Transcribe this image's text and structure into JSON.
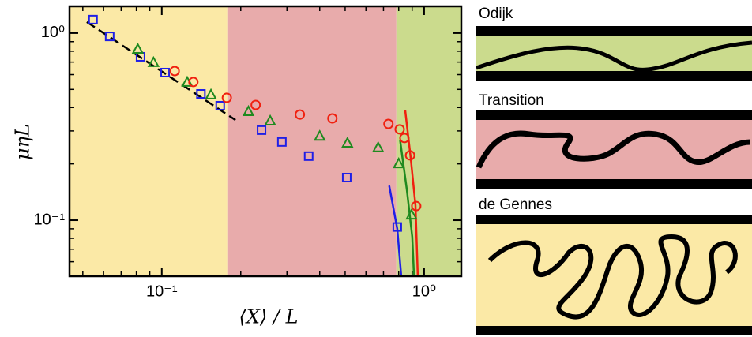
{
  "chart_data": {
    "type": "scatter",
    "xlabel": "⟨X⟩ / L",
    "ylabel": "μηL",
    "xscale": "log",
    "yscale": "log",
    "xlim": [
      0.0445,
      1.386
    ],
    "ylim": [
      0.0502,
      1.39
    ],
    "xticks": [
      {
        "value": 0.1,
        "label": "10⁻¹"
      },
      {
        "value": 1,
        "label": "10⁰"
      }
    ],
    "yticks": [
      {
        "value": 0.1,
        "label": "10⁻¹"
      },
      {
        "value": 1,
        "label": "10⁰"
      }
    ],
    "regions": [
      {
        "from": 0.0445,
        "to": 0.179,
        "color": "#fbe9a6"
      },
      {
        "from": 0.179,
        "to": 0.784,
        "color": "#e8abab"
      },
      {
        "from": 0.784,
        "to": 1.386,
        "color": "#cbdb8d"
      }
    ],
    "series": [
      {
        "marker": "square",
        "color": "#1f1fe6",
        "x": [
          0.0547,
          0.0633,
          0.083,
          0.103,
          0.141,
          0.167,
          0.24,
          0.287,
          0.363,
          0.507,
          0.79
        ],
        "y": [
          1.18,
          0.96,
          0.747,
          0.615,
          0.473,
          0.409,
          0.303,
          0.262,
          0.22,
          0.169,
          0.092
        ]
      },
      {
        "marker": "triangle",
        "color": "#1f8a1f",
        "x": [
          0.081,
          0.093,
          0.125,
          0.154,
          0.214,
          0.259,
          0.4,
          0.51,
          0.668,
          0.8,
          0.895
        ],
        "y": [
          0.823,
          0.698,
          0.548,
          0.469,
          0.382,
          0.34,
          0.282,
          0.259,
          0.245,
          0.201,
          0.107
        ]
      },
      {
        "marker": "circle",
        "color": "#f0200f",
        "x": [
          0.112,
          0.132,
          0.177,
          0.228,
          0.336,
          0.447,
          0.731,
          0.807,
          0.841,
          0.884,
          0.933
        ],
        "y": [
          0.627,
          0.548,
          0.451,
          0.413,
          0.367,
          0.35,
          0.327,
          0.306,
          0.275,
          0.222,
          0.119
        ]
      }
    ],
    "lines": [
      {
        "color": "#000000",
        "dash": true,
        "x": [
          0.0518,
          0.191
        ],
        "y": [
          1.146,
          0.343
        ]
      },
      {
        "color": "#1f1fe6",
        "dash": false,
        "x": [
          0.736,
          0.79,
          0.818
        ],
        "y": [
          0.153,
          0.09,
          0.0502
        ]
      },
      {
        "color": "#1f8a1f",
        "dash": false,
        "x": [
          0.81,
          0.859,
          0.901,
          0.915
        ],
        "y": [
          0.267,
          0.146,
          0.0815,
          0.0502
        ]
      },
      {
        "color": "#f0200f",
        "dash": false,
        "x": [
          0.847,
          0.889,
          0.927,
          0.946
        ],
        "y": [
          0.386,
          0.215,
          0.12,
          0.0502
        ]
      }
    ]
  },
  "panels": [
    {
      "label": "Odijk"
    },
    {
      "label": "Transition"
    },
    {
      "label": "de Gennes"
    }
  ]
}
